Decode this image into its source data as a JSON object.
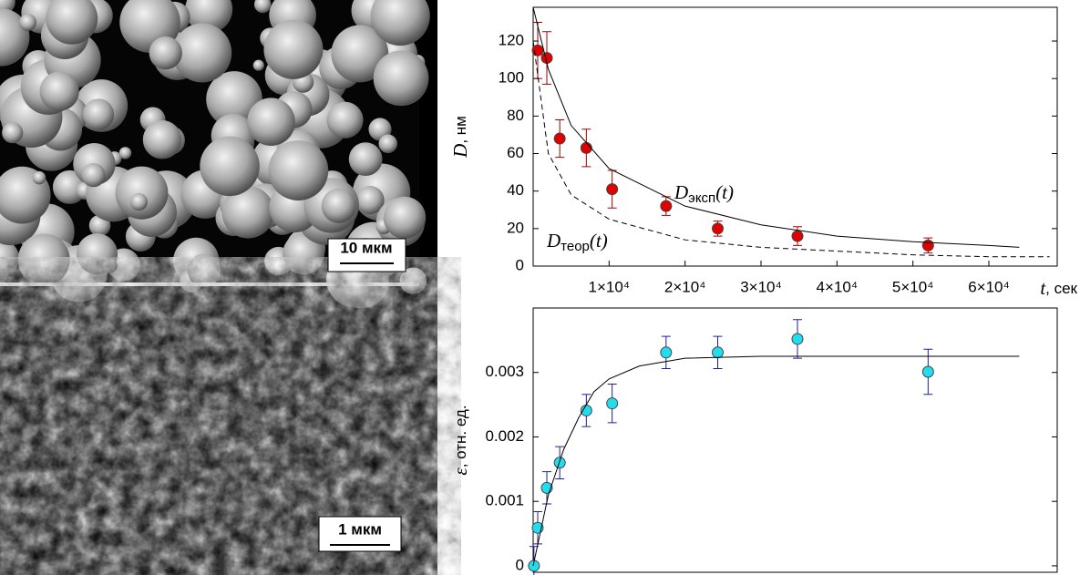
{
  "images": [
    {
      "scale_label": "10 мкм"
    },
    {
      "scale_label": "1 мкм"
    }
  ],
  "chart_data": [
    {
      "type": "scatter",
      "ylabel": {
        "symbol": "D",
        "unit": ", нм"
      },
      "xlabel": {
        "symbol": "t",
        "unit": ", сек"
      },
      "xlim": [
        0,
        69000
      ],
      "ylim": [
        0,
        138
      ],
      "yticks": [
        0,
        20,
        40,
        60,
        80,
        100,
        120
      ],
      "xticks": [
        {
          "value": 10000,
          "label": "1×10⁴"
        },
        {
          "value": 20000,
          "label": "2×10⁴"
        },
        {
          "value": 30000,
          "label": "3×10⁴"
        },
        {
          "value": 40000,
          "label": "4×10⁴"
        },
        {
          "value": 50000,
          "label": "5×10⁴"
        },
        {
          "value": 60000,
          "label": "6×10⁴"
        }
      ],
      "series": [
        {
          "kind": "points",
          "color": "#e00000",
          "x": [
            600,
            1800,
            3500,
            7000,
            10400,
            17500,
            24300,
            34800,
            52000
          ],
          "values": [
            115,
            111,
            68,
            63,
            41,
            32,
            20,
            16,
            11
          ],
          "errors": [
            15,
            14,
            10,
            10,
            10,
            5,
            4,
            5,
            4
          ]
        },
        {
          "kind": "fit",
          "style": "solid",
          "x": [
            0,
            2000,
            5000,
            10000,
            20000,
            30000,
            40000,
            50000,
            60000,
            64000
          ],
          "values": [
            138,
            105,
            75,
            52,
            32,
            22,
            16,
            13,
            11,
            10
          ]
        },
        {
          "kind": "fit",
          "style": "dashed",
          "x": [
            0,
            2000,
            5000,
            10000,
            20000,
            30000,
            40000,
            50000,
            60000,
            68000
          ],
          "values": [
            120,
            60,
            38,
            25,
            14,
            10,
            8,
            6,
            5,
            5
          ]
        }
      ],
      "annotations": [
        {
          "symbol": "D",
          "sub": "эксп",
          "arg": "(t)"
        },
        {
          "symbol": "D",
          "sub": "теор",
          "arg": "(t)"
        }
      ]
    },
    {
      "type": "scatter",
      "ylabel": {
        "symbol": "ε",
        "unit": ", отн. ед."
      },
      "xlim": [
        0,
        69000
      ],
      "ylim": [
        -0.0001,
        0.004
      ],
      "yticks": [
        0,
        0.001,
        0.002,
        0.003
      ],
      "series": [
        {
          "kind": "points",
          "color": "#22ddee",
          "x": [
            100,
            600,
            1800,
            3500,
            7000,
            10400,
            17500,
            24300,
            34800,
            52000
          ],
          "values": [
            0,
            0.00059,
            0.00121,
            0.0016,
            0.00241,
            0.00252,
            0.00331,
            0.00331,
            0.00352,
            0.00301
          ],
          "errors": [
            0.0003,
            0.00025,
            0.00025,
            0.00025,
            0.00025,
            0.0003,
            0.00025,
            0.00025,
            0.0003,
            0.00035
          ]
        },
        {
          "kind": "fit",
          "style": "solid",
          "x": [
            0,
            2000,
            4000,
            6000,
            8000,
            10000,
            14000,
            20000,
            30000,
            64000
          ],
          "values": [
            0,
            0.0011,
            0.0018,
            0.0023,
            0.0027,
            0.0029,
            0.0031,
            0.00322,
            0.00325,
            0.00325
          ]
        }
      ]
    }
  ]
}
